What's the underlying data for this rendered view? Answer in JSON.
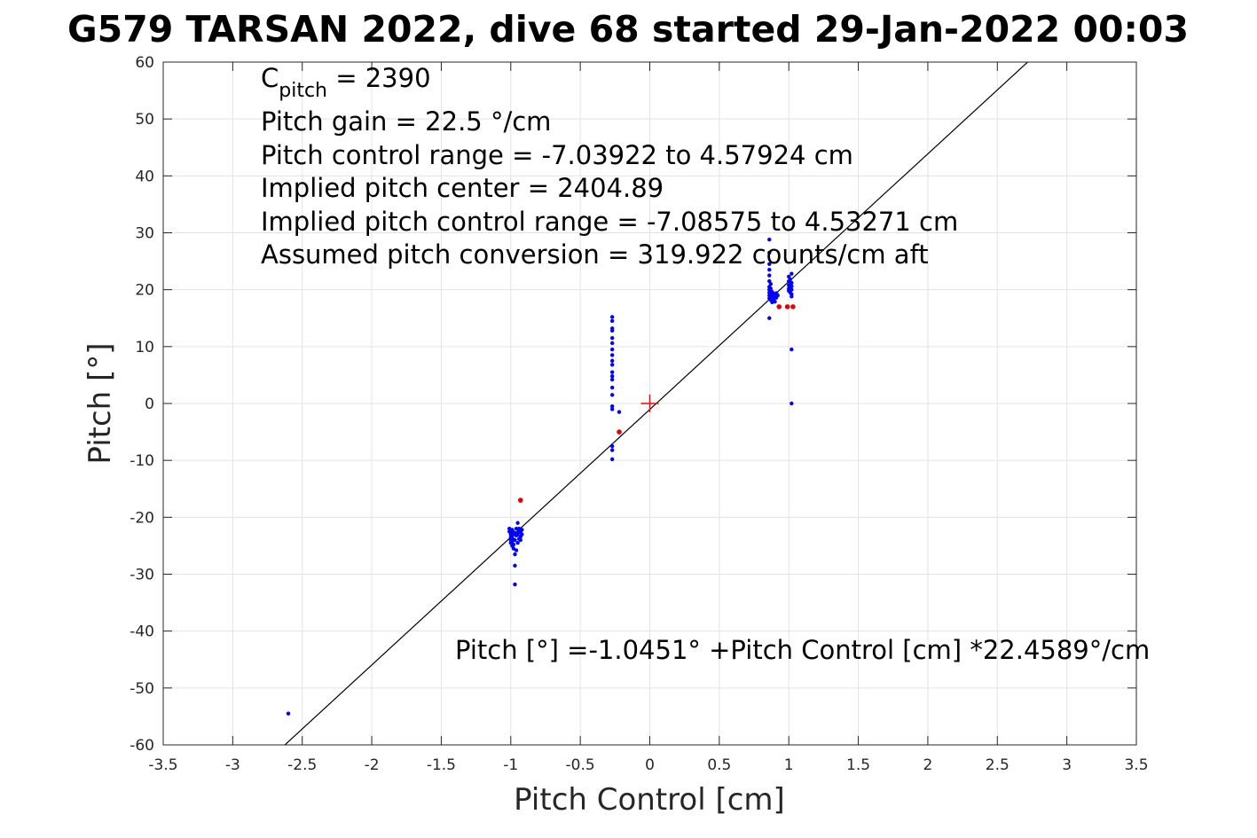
{
  "chart_data": {
    "type": "scatter",
    "title": "G579 TARSAN 2022, dive 68 started 29-Jan-2022 00:03",
    "xlabel": "Pitch Control [cm]",
    "ylabel": "Pitch [°]",
    "xlim": [
      -3.5,
      3.5
    ],
    "ylim": [
      -60,
      60
    ],
    "x_ticks": [
      -3.5,
      -3,
      -2.5,
      -2,
      -1.5,
      -1,
      -0.5,
      0,
      0.5,
      1,
      1.5,
      2,
      2.5,
      3,
      3.5
    ],
    "y_ticks": [
      -60,
      -50,
      -40,
      -30,
      -20,
      -10,
      0,
      10,
      20,
      30,
      40,
      50,
      60
    ],
    "grid": true,
    "annotations": {
      "c_pitch_symbol": "C",
      "c_pitch_subscript": "pitch",
      "c_pitch_value": " = 2390",
      "pitch_gain": "Pitch gain = 22.5 °/cm",
      "control_range": "Pitch control range = -7.03922 to 4.57924 cm",
      "implied_center": "Implied pitch center = 2404.89",
      "implied_range": "Implied pitch control range = -7.08575 to 4.53271 cm",
      "conversion": "Assumed pitch conversion = 319.922 counts/cm aft",
      "fit_equation": "Pitch [°] =-1.0451° +Pitch Control [cm] *22.4589°/cm"
    },
    "fit_line": {
      "intercept": -1.0451,
      "slope": 22.4589,
      "color": "#000000"
    },
    "center_marker": {
      "x": 0,
      "y": 0,
      "color": "#ff0000"
    },
    "series": [
      {
        "color": "#0000ff",
        "points": [
          [
            -2.6,
            -54.5
          ],
          [
            -1.01,
            -22
          ],
          [
            -1.01,
            -22.5
          ],
          [
            -1.0,
            -23
          ],
          [
            -1.0,
            -23.5
          ],
          [
            -1.0,
            -24
          ],
          [
            -1.0,
            -24.5
          ],
          [
            -1.0,
            -22.8
          ],
          [
            -0.99,
            -23.6
          ],
          [
            -0.99,
            -24.2
          ],
          [
            -0.99,
            -22.2
          ],
          [
            -0.99,
            -25
          ],
          [
            -0.98,
            -23
          ],
          [
            -0.98,
            -24.8
          ],
          [
            -0.98,
            -25.5
          ],
          [
            -0.98,
            -22.6
          ],
          [
            -0.97,
            -26.5
          ],
          [
            -0.97,
            -28.5
          ],
          [
            -0.97,
            -31.8
          ],
          [
            -0.97,
            -24
          ],
          [
            -0.96,
            -23.2
          ],
          [
            -0.96,
            -22.8
          ],
          [
            -0.96,
            -25.8
          ],
          [
            -0.96,
            -22
          ],
          [
            -0.95,
            -23
          ],
          [
            -0.95,
            -21
          ],
          [
            -0.95,
            -24.5
          ],
          [
            -0.94,
            -22.4
          ],
          [
            -0.94,
            -23.8
          ],
          [
            -0.94,
            -22
          ],
          [
            -0.93,
            -22.6
          ],
          [
            -0.93,
            -23.4
          ],
          [
            -0.93,
            -24
          ],
          [
            -0.92,
            -22.2
          ],
          [
            -0.92,
            -23
          ],
          [
            -0.27,
            15.2
          ],
          [
            -0.27,
            14.5
          ],
          [
            -0.27,
            13.2
          ],
          [
            -0.27,
            12.8
          ],
          [
            -0.27,
            11.5
          ],
          [
            -0.27,
            10.6
          ],
          [
            -0.27,
            9.5
          ],
          [
            -0.27,
            8.5
          ],
          [
            -0.27,
            7.5
          ],
          [
            -0.27,
            6.8
          ],
          [
            -0.27,
            5.5
          ],
          [
            -0.27,
            4.8
          ],
          [
            -0.27,
            4.2
          ],
          [
            -0.27,
            2.8
          ],
          [
            -0.27,
            1.5
          ],
          [
            -0.27,
            -0.5
          ],
          [
            -0.27,
            -1.0
          ],
          [
            -0.27,
            -7.5
          ],
          [
            -0.27,
            -8.2
          ],
          [
            -0.27,
            -9.8
          ],
          [
            -0.22,
            -1.5
          ],
          [
            0.86,
            28.8
          ],
          [
            0.86,
            26.5
          ],
          [
            0.86,
            24.5
          ],
          [
            0.86,
            23.5
          ],
          [
            0.86,
            22.5
          ],
          [
            0.86,
            21.5
          ],
          [
            0.86,
            20.5
          ],
          [
            0.86,
            20
          ],
          [
            0.86,
            19.5
          ],
          [
            0.86,
            19
          ],
          [
            0.86,
            18.5
          ],
          [
            0.86,
            15
          ],
          [
            0.87,
            21
          ],
          [
            0.87,
            20.2
          ],
          [
            0.87,
            19.2
          ],
          [
            0.87,
            18.2
          ],
          [
            0.88,
            19.6
          ],
          [
            0.88,
            18.8
          ],
          [
            0.88,
            18
          ],
          [
            0.88,
            17.8
          ],
          [
            0.89,
            19.3
          ],
          [
            0.89,
            18.5
          ],
          [
            0.89,
            18
          ],
          [
            0.9,
            19.2
          ],
          [
            0.9,
            18.6
          ],
          [
            0.9,
            17.9
          ],
          [
            0.91,
            19.4
          ],
          [
            0.91,
            18.6
          ],
          [
            0.92,
            19
          ],
          [
            1.0,
            21.5
          ],
          [
            1.0,
            20.8
          ],
          [
            1.0,
            20.2
          ],
          [
            1.0,
            19.8
          ],
          [
            1.0,
            22.3
          ],
          [
            1.01,
            21
          ],
          [
            1.01,
            20.3
          ],
          [
            1.01,
            19.5
          ],
          [
            1.01,
            21.8
          ],
          [
            1.02,
            22.8
          ],
          [
            1.02,
            21.2
          ],
          [
            1.02,
            20.6
          ],
          [
            1.02,
            20
          ],
          [
            1.02,
            19.2
          ],
          [
            1.02,
            18.8
          ],
          [
            1.02,
            9.5
          ],
          [
            1.02,
            0
          ]
        ]
      },
      {
        "color": "#e60000",
        "points": [
          [
            -0.93,
            -17
          ],
          [
            -0.22,
            -5
          ],
          [
            0.93,
            17
          ],
          [
            0.99,
            17
          ],
          [
            1.03,
            17
          ]
        ]
      }
    ]
  }
}
